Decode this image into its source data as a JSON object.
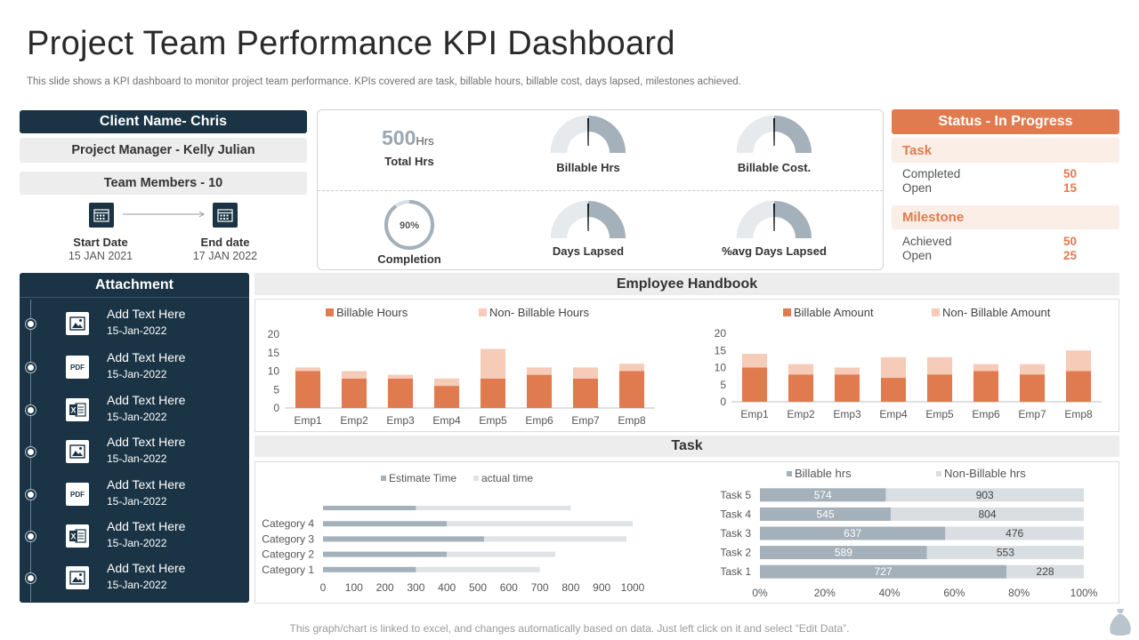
{
  "header": {
    "title": "Project Team Performance KPI Dashboard",
    "subtitle": "This slide shows a KPI dashboard to monitor project team performance. KPIs covered are task, billable hours, billable cost, days lapsed, milestones achieved."
  },
  "project": {
    "client": "Client Name- Chris",
    "manager": "Project Manager -  Kelly Julian",
    "members": "Team Members - 10",
    "start_label": "Start Date",
    "start_value": "15 JAN 2021",
    "end_label": "End date",
    "end_value": "17 JAN 2022"
  },
  "kpi": {
    "total_hours_value": "500",
    "total_hours_unit": "Hrs",
    "total_hours_label": "Total Hrs",
    "completion_value": "90%",
    "completion_fraction": 0.9,
    "completion_label": "Completion",
    "billable_hrs_label": "Billable Hrs",
    "billable_cost_label": "Billable Cost.",
    "days_lapsed_label": "Days Lapsed",
    "avg_days_lapsed_label": "%avg Days  Lapsed"
  },
  "status": {
    "title": "Status  - In Progress",
    "task_heading": "Task",
    "task_completed_label": "Completed",
    "task_completed_value": "50",
    "task_open_label": "Open",
    "task_open_value": "15",
    "milestone_heading": "Milestone",
    "milestone_achieved_label": "Achieved",
    "milestone_achieved_value": "50",
    "milestone_open_label": "Open",
    "milestone_open_value": "25"
  },
  "attachments": {
    "title": "Attachment",
    "items": [
      {
        "icon": "image-icon",
        "text": "Add Text Here",
        "date": "15-Jan-2022"
      },
      {
        "icon": "pdf-icon",
        "text": "Add Text Here",
        "date": "15-Jan-2022"
      },
      {
        "icon": "excel-icon",
        "text": "Add Text Here",
        "date": "15-Jan-2022"
      },
      {
        "icon": "image-icon",
        "text": "Add Text Here",
        "date": "15-Jan-2022"
      },
      {
        "icon": "pdf-icon",
        "text": "Add Text Here",
        "date": "15-Jan-2022"
      },
      {
        "icon": "excel-icon",
        "text": "Add Text Here",
        "date": "15-Jan-2022"
      },
      {
        "icon": "image-icon",
        "text": "Add Text Here",
        "date": "15-Jan-2022"
      }
    ]
  },
  "sections": {
    "employee_handbook": "Employee Handbook",
    "task": "Task"
  },
  "colors": {
    "navy": "#1a3445",
    "orange": "#e07b4f",
    "bar_dark": "#e07b4f",
    "bar_light": "#f6cbb7",
    "grey_dark": "#a4b0ba",
    "grey_light": "#d9dee2"
  },
  "chart_data": [
    {
      "type": "bar",
      "stacked": true,
      "categories": [
        "Emp1",
        "Emp2",
        "Emp3",
        "Emp4",
        "Emp5",
        "Emp6",
        "Emp7",
        "Emp8"
      ],
      "series": [
        {
          "name": "Billable Hours",
          "values": [
            10,
            8,
            8,
            6,
            8,
            9,
            8,
            10
          ]
        },
        {
          "name": "Non- Billable Hours",
          "values": [
            1,
            2,
            1,
            2,
            8,
            2,
            3,
            2
          ]
        }
      ],
      "ylim": [
        0,
        20
      ],
      "yticks": [
        0,
        5,
        10,
        15,
        20
      ],
      "legend": "top"
    },
    {
      "type": "bar",
      "stacked": true,
      "categories": [
        "Emp1",
        "Emp2",
        "Emp3",
        "Emp4",
        "Emp5",
        "Emp6",
        "Emp7",
        "Emp8"
      ],
      "series": [
        {
          "name": "Billable Amount",
          "values": [
            10,
            8,
            8,
            7,
            8,
            9,
            8,
            9
          ]
        },
        {
          "name": "Non- Billable Amount",
          "values": [
            4,
            3,
            2,
            6,
            5,
            2,
            3,
            6
          ]
        }
      ],
      "ylim": [
        0,
        20
      ],
      "yticks": [
        0,
        5,
        10,
        15,
        20
      ],
      "legend": "top"
    },
    {
      "type": "bar",
      "orientation": "horizontal",
      "stacked": true,
      "categories": [
        "Category 1",
        "Category 2",
        "Category 3",
        "Category 4"
      ],
      "series": [
        {
          "name": "Estimate Time",
          "values": [
            300,
            400,
            520,
            400
          ]
        },
        {
          "name": "actual time",
          "values": [
            400,
            350,
            460,
            600
          ]
        }
      ],
      "extra_bar": {
        "start": 300,
        "end": 800
      },
      "xlim": [
        0,
        1000
      ],
      "xticks": [
        0,
        100,
        200,
        300,
        400,
        500,
        600,
        700,
        800,
        900,
        1000
      ],
      "legend": "top"
    },
    {
      "type": "bar",
      "orientation": "horizontal",
      "stacked_percent": true,
      "categories": [
        "Task 1",
        "Task 2",
        "Task 3",
        "Task 4",
        "Task 5"
      ],
      "series": [
        {
          "name": "Billable hrs",
          "values": [
            727,
            589,
            637,
            545,
            574
          ]
        },
        {
          "name": "Non-Billable hrs",
          "values": [
            228,
            553,
            476,
            804,
            903
          ]
        }
      ],
      "xlim": [
        0,
        1
      ],
      "xticks": [
        "0%",
        "20%",
        "40%",
        "60%",
        "80%",
        "100%"
      ],
      "legend": "top"
    }
  ],
  "footer": {
    "note": "This graph/chart is linked to excel, and changes automatically based on data. Just left click on it and select “Edit Data”."
  }
}
